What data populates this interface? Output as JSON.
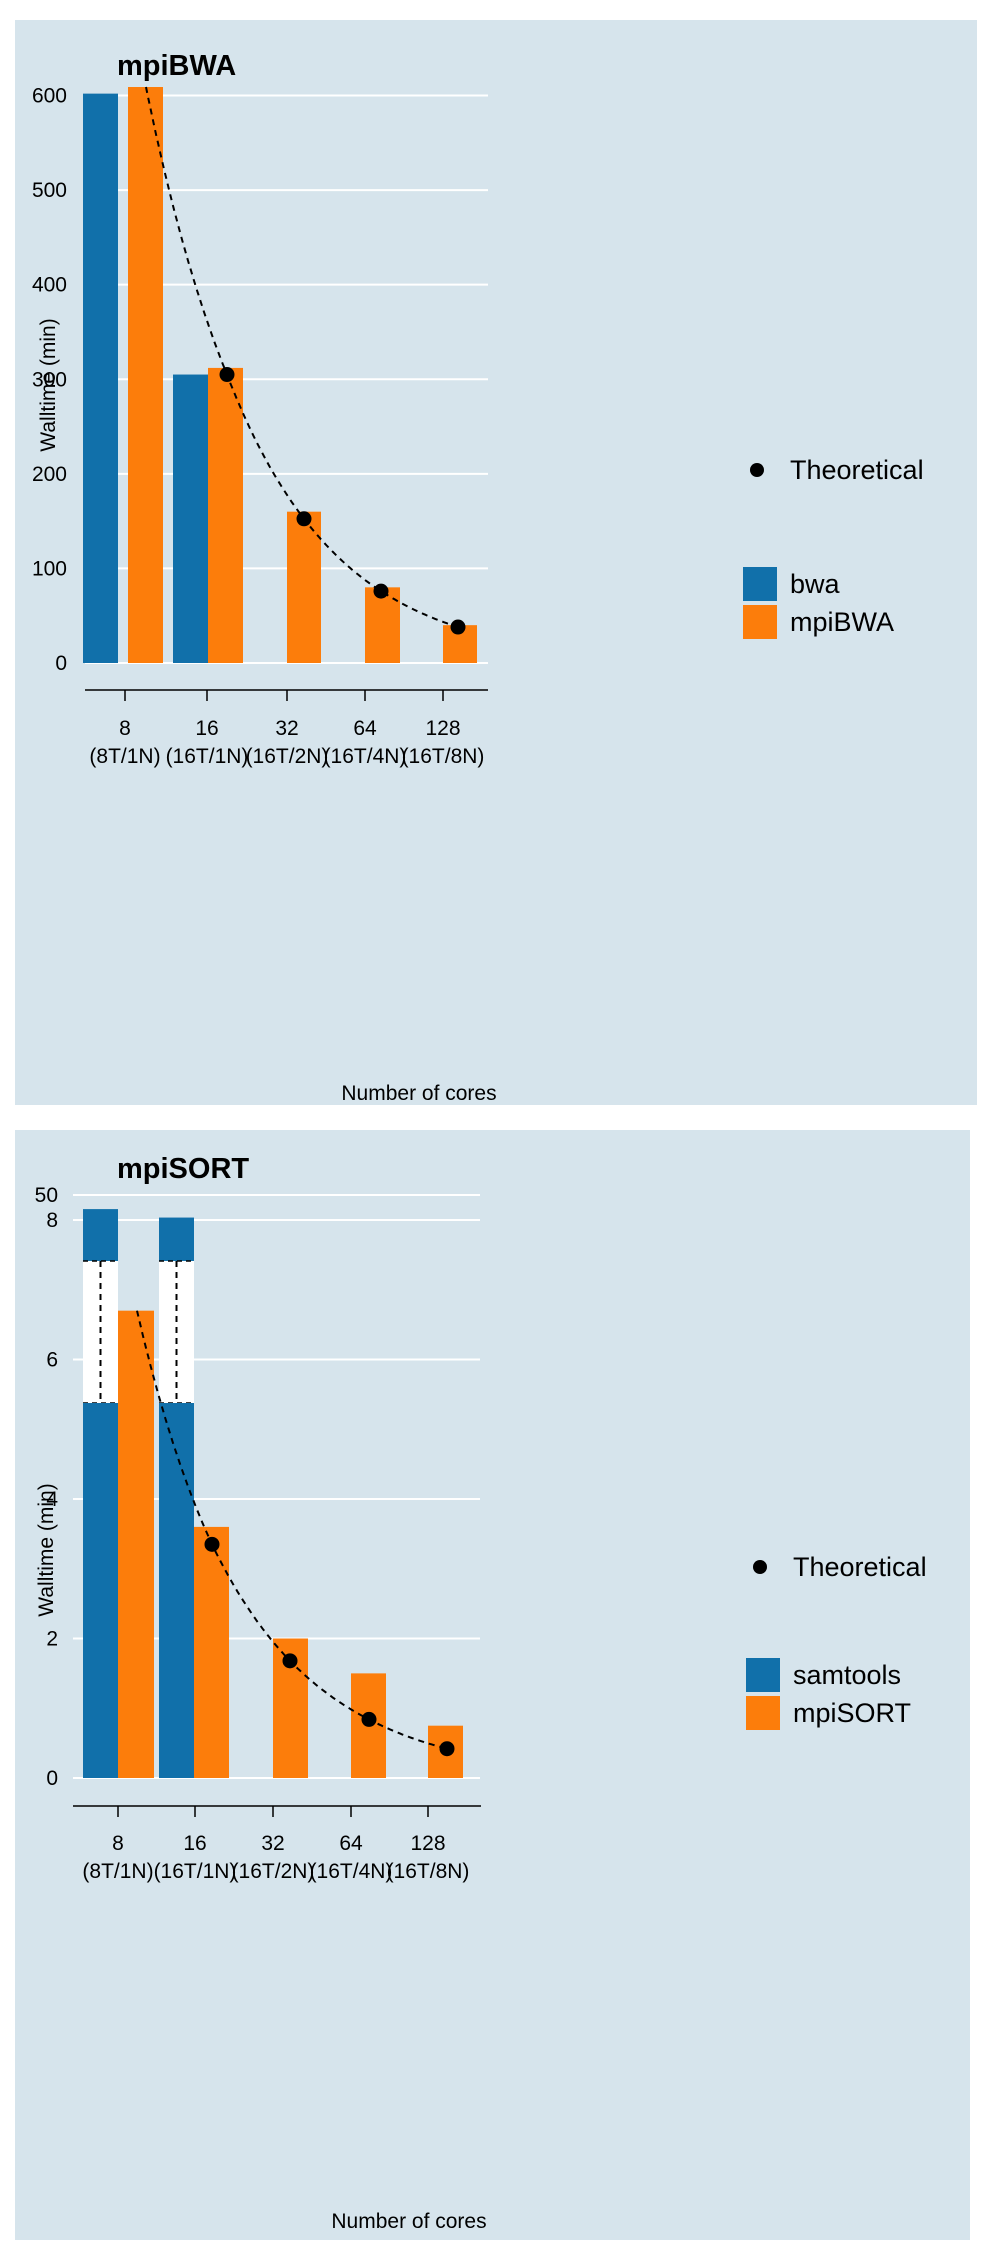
{
  "colors": {
    "series1": "#1170aa",
    "series2": "#fc7d0b",
    "panel": "#d6e4ec",
    "grid": "#ffffff",
    "theory": "#000000"
  },
  "chart_data": [
    {
      "type": "bar",
      "title": "mpiBWA",
      "xlabel": "Number of cores",
      "ylabel": "Walltime (min)",
      "categories": [
        "8",
        "16",
        "32",
        "64",
        "128"
      ],
      "category_sublabels": [
        "(8T/1N)",
        "(16T/1N)",
        "(16T/2N)",
        "(16T/4N)",
        "(16T/8N)"
      ],
      "ylim": [
        0,
        650
      ],
      "yticks": [
        0,
        100,
        200,
        300,
        400,
        500,
        600
      ],
      "series": [
        {
          "name": "bwa",
          "values": [
            602,
            305,
            null,
            null,
            null
          ]
        },
        {
          "name": "mpiBWA",
          "values": [
            609,
            312,
            160,
            80,
            40
          ]
        }
      ],
      "theoretical": {
        "name": "Theoretical",
        "points": [
          305,
          152.5,
          76,
          38
        ],
        "curve_start": 609
      },
      "legend_position": "right",
      "grid": true
    },
    {
      "type": "bar",
      "title": "mpiSORT",
      "xlabel": "Number of cores",
      "ylabel": "Walltime (min)",
      "categories": [
        "8",
        "16",
        "32",
        "64",
        "128"
      ],
      "category_sublabels": [
        "(8T/1N)",
        "(16T/1N)",
        "(16T/2N)",
        "(16T/4N)",
        "(16T/8N)"
      ],
      "ylim": [
        0,
        10
      ],
      "yticks": [
        0,
        2,
        4,
        6,
        8,
        50
      ],
      "axis_break": true,
      "series": [
        {
          "name": "samtools",
          "values": [
            48.5,
            47.6,
            null,
            null,
            null
          ]
        },
        {
          "name": "mpiSORT",
          "values": [
            6.7,
            3.6,
            2.0,
            1.5,
            0.75
          ]
        }
      ],
      "theoretical": {
        "name": "Theoretical",
        "points": [
          3.35,
          1.68,
          0.84,
          0.42
        ],
        "curve_start": 6.7
      },
      "legend_position": "right",
      "grid": true
    }
  ]
}
